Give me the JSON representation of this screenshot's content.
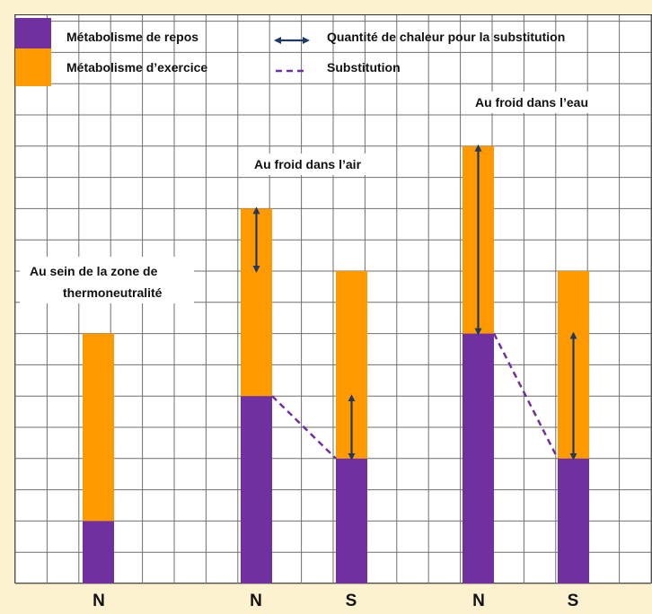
{
  "chart_data": {
    "type": "bar",
    "stacked": true,
    "grid": true,
    "categories": [
      "N",
      "N",
      "S",
      "N",
      "S"
    ],
    "series": [
      {
        "name": "Métabolisme de repos",
        "color": "#7030a0",
        "values": [
          2,
          6,
          4,
          8,
          4
        ]
      },
      {
        "name": "Métabolisme d’exercice",
        "color": "#ff9900",
        "values": [
          6,
          6,
          6,
          6,
          6
        ]
      }
    ],
    "legend": {
      "heat_arrow_label": "Quantité de chaleur pour la substitution",
      "substitution_label": "Substitution",
      "arrow_color": "#1f3864",
      "placement": "top"
    },
    "group_labels": {
      "thermo": [
        "Au sein de la zone de",
        "thermoneutralité"
      ],
      "air": "Au froid dans l’air",
      "water": "Au froid dans l’eau"
    },
    "annotations": [
      {
        "type": "heat-arrow",
        "bar": 1,
        "from": 12,
        "to": 10
      },
      {
        "type": "heat-arrow",
        "bar": 2,
        "from": 4,
        "to": 6
      },
      {
        "type": "heat-arrow",
        "bar": 3,
        "from": 14,
        "to": 8
      },
      {
        "type": "heat-arrow",
        "bar": 4,
        "from": 4,
        "to": 8
      },
      {
        "type": "substitution",
        "from_bar": 1,
        "to_bar": 2,
        "from": 6,
        "to": 4
      },
      {
        "type": "substitution",
        "from_bar": 3,
        "to_bar": 4,
        "from": 8,
        "to": 4
      }
    ],
    "ylim": [
      0,
      18
    ]
  }
}
